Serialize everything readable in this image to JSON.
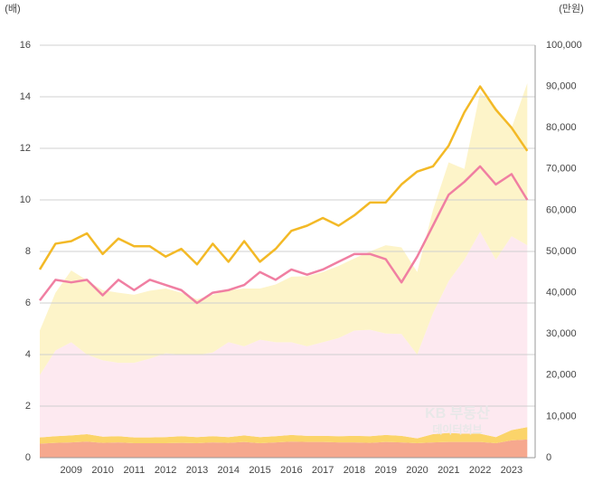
{
  "chart_data": {
    "type": "line",
    "y_label": "(배)",
    "y2_label": "(만원)",
    "watermark": [
      "KB 부동산",
      "데이터허브"
    ],
    "x": [
      2008,
      2008.5,
      2009,
      2009.5,
      2010,
      2010.5,
      2011,
      2011.5,
      2012,
      2012.5,
      2013,
      2013.5,
      2014,
      2014.5,
      2015,
      2015.5,
      2016,
      2016.5,
      2017,
      2017.5,
      2018,
      2018.5,
      2019,
      2019.5,
      2020,
      2020.5,
      2021,
      2021.5,
      2022,
      2022.5,
      2023,
      2023.5
    ],
    "xlim": [
      2008,
      2023.75
    ],
    "xticks": [
      2009,
      2010,
      2011,
      2012,
      2013,
      2014,
      2015,
      2016,
      2017,
      2018,
      2019,
      2020,
      2021,
      2022,
      2023
    ],
    "ylim": [
      0,
      16
    ],
    "yticks": [
      0,
      2,
      4,
      6,
      8,
      10,
      12,
      14,
      16
    ],
    "y2lim": [
      0,
      100000
    ],
    "y2ticks": [
      0,
      {
        "value": 10000,
        "label": "10,000"
      },
      {
        "value": 20000,
        "label": "20,000"
      },
      {
        "value": 30000,
        "label": "30,000"
      },
      {
        "value": 40000,
        "label": "40,000"
      },
      {
        "value": 50000,
        "label": "50,000"
      },
      {
        "value": 60000,
        "label": "60,000"
      },
      {
        "value": 70000,
        "label": "70,000"
      },
      {
        "value": 80000,
        "label": "80,000"
      },
      {
        "value": 90000,
        "label": "90,000"
      },
      {
        "value": 100000,
        "label": "100,000"
      }
    ],
    "grid": true,
    "areas": [
      {
        "color": "#f6a88e",
        "axis": "y2",
        "values": [
          3400,
          3600,
          3700,
          3900,
          3600,
          3700,
          3500,
          3500,
          3500,
          3600,
          3500,
          3700,
          3600,
          3800,
          3500,
          3700,
          3900,
          3800,
          3800,
          3700,
          3700,
          3600,
          3800,
          3700,
          3500,
          3700,
          3800,
          3800,
          3800,
          3500,
          4200,
          4400
        ]
      },
      {
        "color": "#fbd46a",
        "axis": "y2",
        "values": [
          1500,
          1600,
          1700,
          1800,
          1500,
          1500,
          1400,
          1400,
          1500,
          1600,
          1500,
          1500,
          1400,
          1600,
          1500,
          1500,
          1600,
          1500,
          1500,
          1500,
          1600,
          1600,
          1700,
          1600,
          1200,
          2000,
          2200,
          2000,
          2000,
          1500,
          2500,
          3000
        ]
      },
      {
        "color": "#fde9f0",
        "axis": "y2",
        "values": [
          15100,
          20800,
          22600,
          19300,
          18500,
          17800,
          18100,
          19100,
          20300,
          19800,
          19900,
          20300,
          23000,
          21600,
          23600,
          22800,
          22500,
          21700,
          22700,
          23800,
          25500,
          25800,
          24600,
          24700,
          20300,
          29300,
          36800,
          42200,
          49000,
          43000,
          47000,
          44100
        ]
      },
      {
        "color": "#fdf4c9",
        "axis": "y2",
        "values": [
          10800,
          14000,
          17400,
          18000,
          17000,
          17000,
          16500,
          16500,
          15700,
          15000,
          13500,
          14000,
          12600,
          14000,
          12400,
          14000,
          15900,
          17000,
          17000,
          17500,
          17500,
          19000,
          21400,
          21000,
          20000,
          25000,
          28800,
          22000,
          33800,
          37000,
          26200,
          39300
        ]
      }
    ],
    "series": [
      {
        "color": "#f3b926",
        "values": [
          7.3,
          8.3,
          8.4,
          8.7,
          7.9,
          8.5,
          8.2,
          8.2,
          7.8,
          8.1,
          7.5,
          8.3,
          7.6,
          8.4,
          7.6,
          8.1,
          8.8,
          9.0,
          9.3,
          9.0,
          9.4,
          9.9,
          9.9,
          10.6,
          11.1,
          11.3,
          12.1,
          13.4,
          14.4,
          13.5,
          12.8,
          11.9
        ]
      },
      {
        "color": "#f07fa2",
        "values": [
          6.1,
          6.9,
          6.8,
          6.9,
          6.3,
          6.9,
          6.5,
          6.9,
          6.7,
          6.5,
          6.0,
          6.4,
          6.5,
          6.7,
          7.2,
          6.9,
          7.3,
          7.1,
          7.3,
          7.6,
          7.9,
          7.9,
          7.7,
          6.8,
          7.8,
          9.0,
          10.2,
          10.7,
          11.3,
          10.6,
          11.0,
          10.0
        ]
      }
    ]
  }
}
